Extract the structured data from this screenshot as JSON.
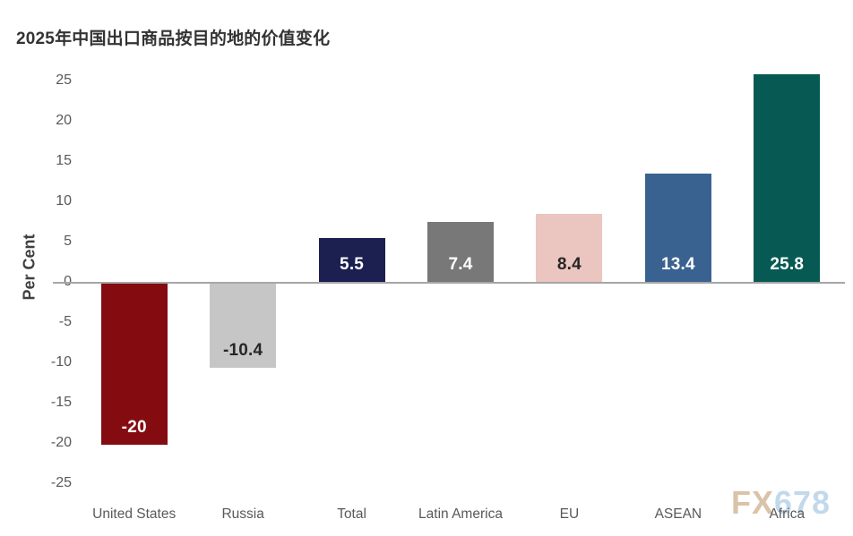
{
  "title": "2025年中国出口商品按目的地的价值变化",
  "watermark": {
    "part1": "FX",
    "part2": "678",
    "color1": "#d9c0a5",
    "color2": "#bfd8ec"
  },
  "chart_data": {
    "type": "bar",
    "title": "2025年中国出口商品按目的地的价值变化",
    "categories": [
      "United States",
      "Russia",
      "Total",
      "Latin America",
      "EU",
      "ASEAN",
      "Africa"
    ],
    "values": [
      -20,
      -10.4,
      5.5,
      7.4,
      8.4,
      13.4,
      25.8
    ],
    "value_labels": [
      "-20",
      "-10.4",
      "5.5",
      "7.4",
      "8.4",
      "13.4",
      "25.8"
    ],
    "bar_colors": [
      "#840c10",
      "#c6c6c6",
      "#1b2051",
      "#787878",
      "#ebc5c0",
      "#3a6290",
      "#065a53"
    ],
    "label_colors": [
      "#ffffff",
      "#262626",
      "#ffffff",
      "#ffffff",
      "#262626",
      "#ffffff",
      "#ffffff"
    ],
    "ylabel": "Per Cent",
    "xlabel": "",
    "ylim": [
      -25,
      25
    ],
    "yticks": [
      25,
      20,
      15,
      10,
      5,
      0,
      -5,
      -10,
      -15,
      -20,
      -25
    ],
    "grid": false,
    "legend": false,
    "axis_line_color": "#a6a6a6",
    "tick_color": "#595959",
    "title_color": "#333333"
  }
}
